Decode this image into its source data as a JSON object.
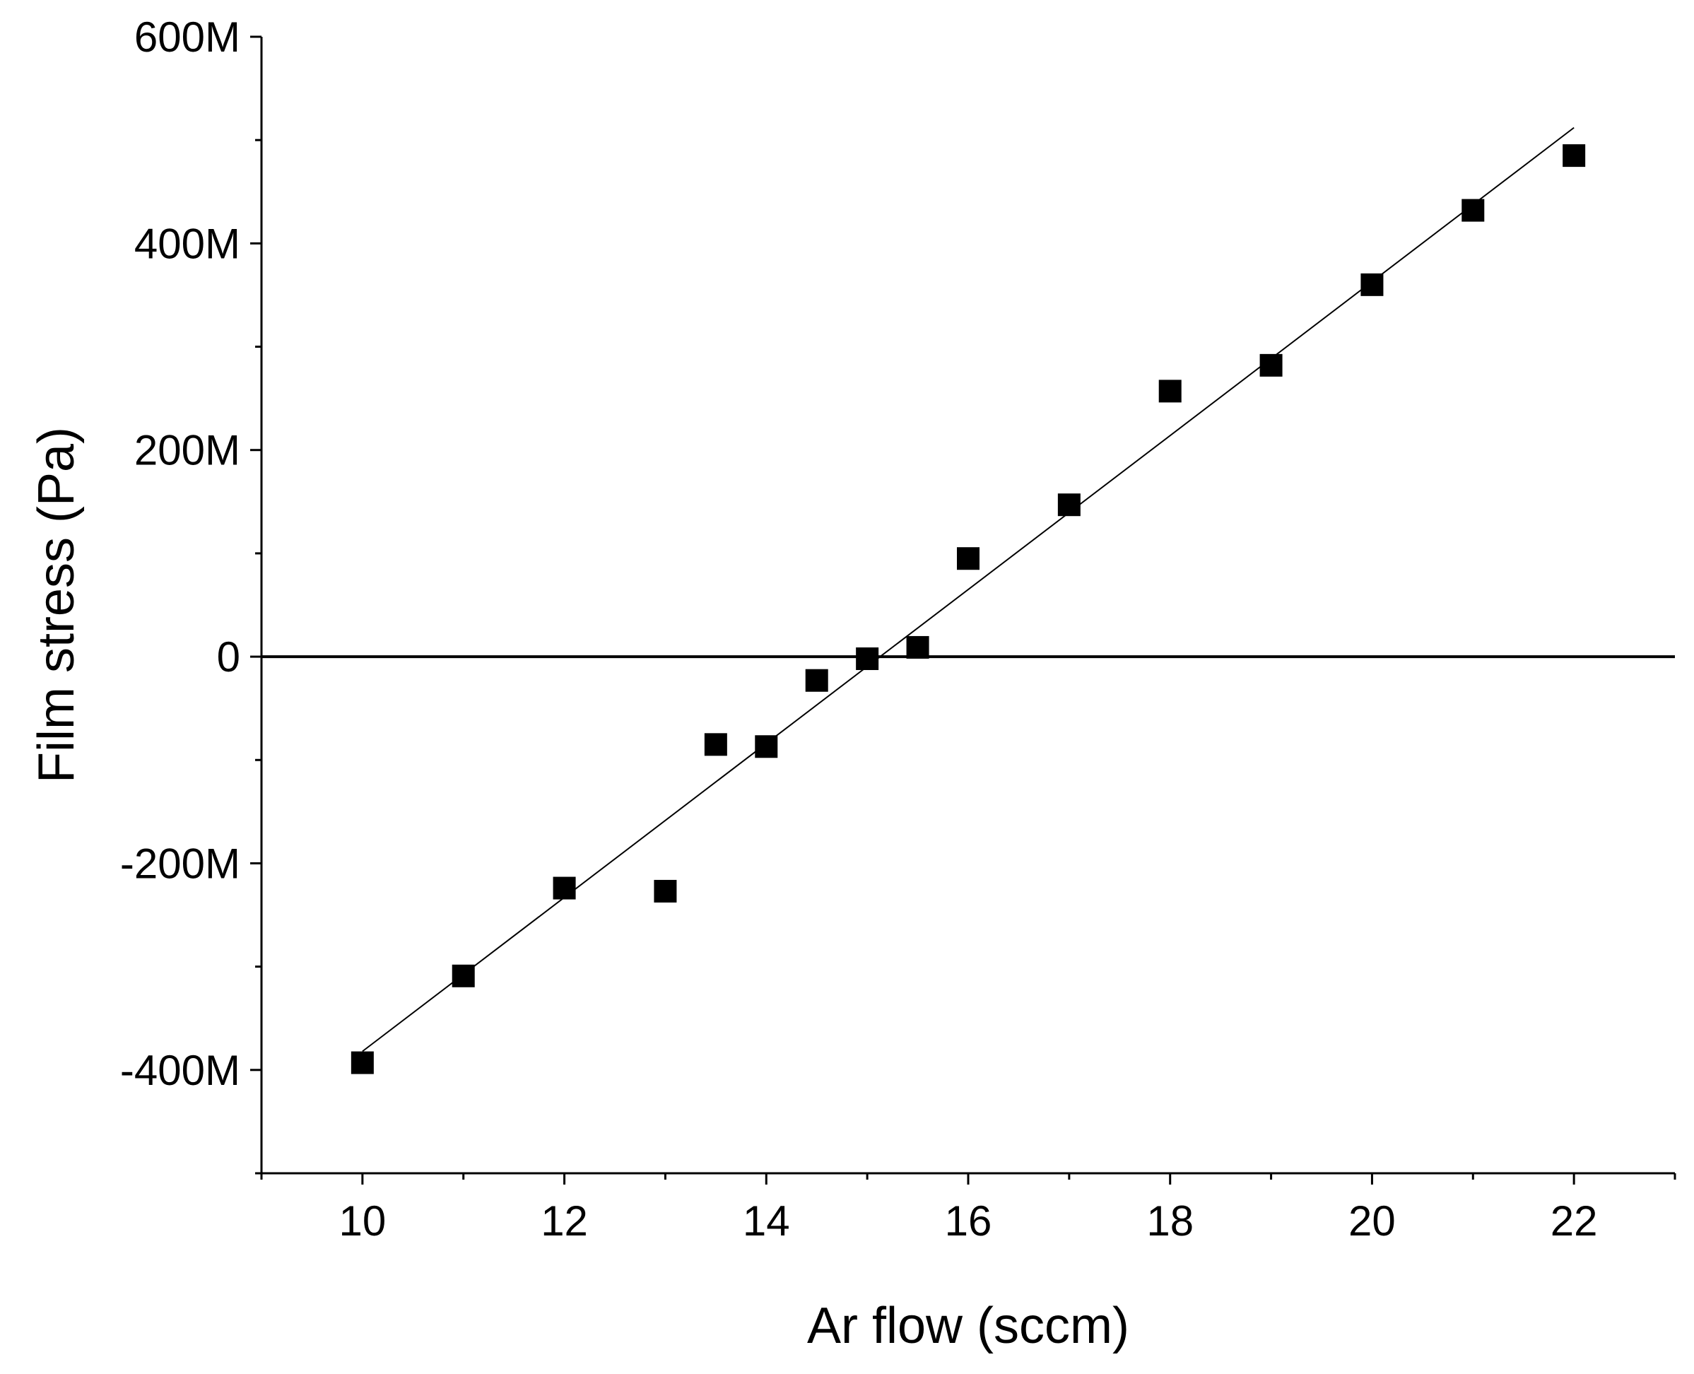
{
  "chart_data": {
    "type": "scatter",
    "title": "",
    "xlabel": "Ar flow (sccm)",
    "ylabel": "Film stress (Pa)",
    "xlim": [
      9,
      23
    ],
    "ylim": [
      -500000000,
      600000000
    ],
    "x_ticks": [
      10,
      12,
      14,
      16,
      18,
      20,
      22
    ],
    "x_tick_labels": [
      "10",
      "12",
      "14",
      "16",
      "18",
      "20",
      "22"
    ],
    "x_minor_ticks": [
      9,
      11,
      13,
      15,
      17,
      19,
      21,
      23
    ],
    "y_ticks": [
      -400000000,
      -200000000,
      0,
      200000000,
      400000000,
      600000000
    ],
    "y_tick_labels": [
      "-400M",
      "-200M",
      "0",
      "200M",
      "400M",
      "600M"
    ],
    "y_minor_ticks": [
      -500000000,
      -300000000,
      -100000000,
      100000000,
      300000000,
      500000000
    ],
    "grid": false,
    "reference_line_y": 0,
    "series": [
      {
        "marker": "square",
        "color": "#000000",
        "x": [
          10,
          11,
          12,
          13,
          13.5,
          14,
          14.5,
          15,
          15.5,
          16,
          17,
          18,
          19,
          20,
          21,
          22
        ],
        "y": [
          -393000000,
          -309000000,
          -224000000,
          -227000000,
          -85000000,
          -87000000,
          -23000000,
          -2000000,
          9000000,
          95000000,
          147000000,
          257000000,
          282000000,
          360000000,
          432000000,
          485000000
        ]
      }
    ],
    "fit_line": {
      "x": [
        10,
        22
      ],
      "y": [
        -382000000,
        512000000
      ]
    }
  }
}
